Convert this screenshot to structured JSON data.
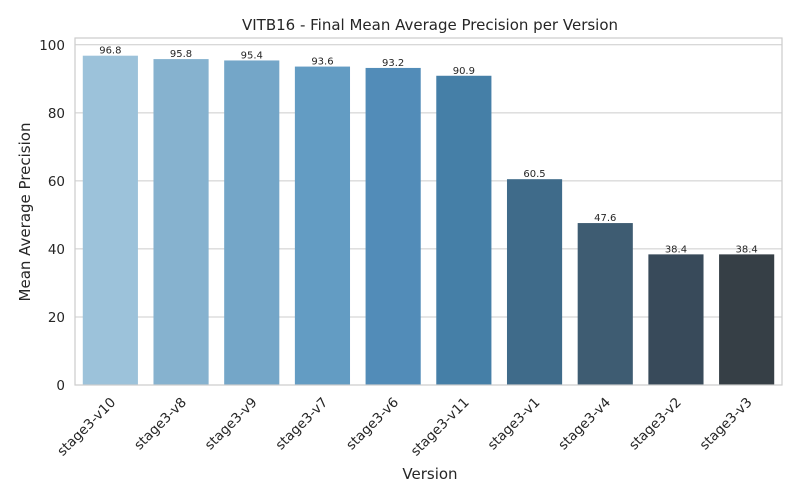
{
  "chart_data": {
    "type": "bar",
    "title": "VITB16 - Final Mean Average Precision per Version",
    "xlabel": "Version",
    "ylabel": "Mean Average Precision",
    "ylim": [
      0,
      102
    ],
    "yticks": [
      0,
      20,
      40,
      60,
      80,
      100
    ],
    "grid": true,
    "categories": [
      "stage3-v10",
      "stage3-v8",
      "stage3-v9",
      "stage3-v7",
      "stage3-v6",
      "stage3-v11",
      "stage3-v1",
      "stage3-v4",
      "stage3-v2",
      "stage3-v3"
    ],
    "values": [
      96.8,
      95.8,
      95.4,
      93.6,
      93.2,
      90.9,
      60.5,
      47.6,
      38.4,
      38.4
    ],
    "value_labels": [
      "96.8",
      "95.8",
      "95.4",
      "93.6",
      "93.2",
      "90.9",
      "60.5",
      "47.6",
      "38.4",
      "38.4"
    ],
    "colors": [
      "#9cc2da",
      "#86b2cf",
      "#74a6c8",
      "#639cc3",
      "#528cb8",
      "#457fa7",
      "#3f6b8a",
      "#3e5c72",
      "#384a5a",
      "#363f46"
    ]
  }
}
